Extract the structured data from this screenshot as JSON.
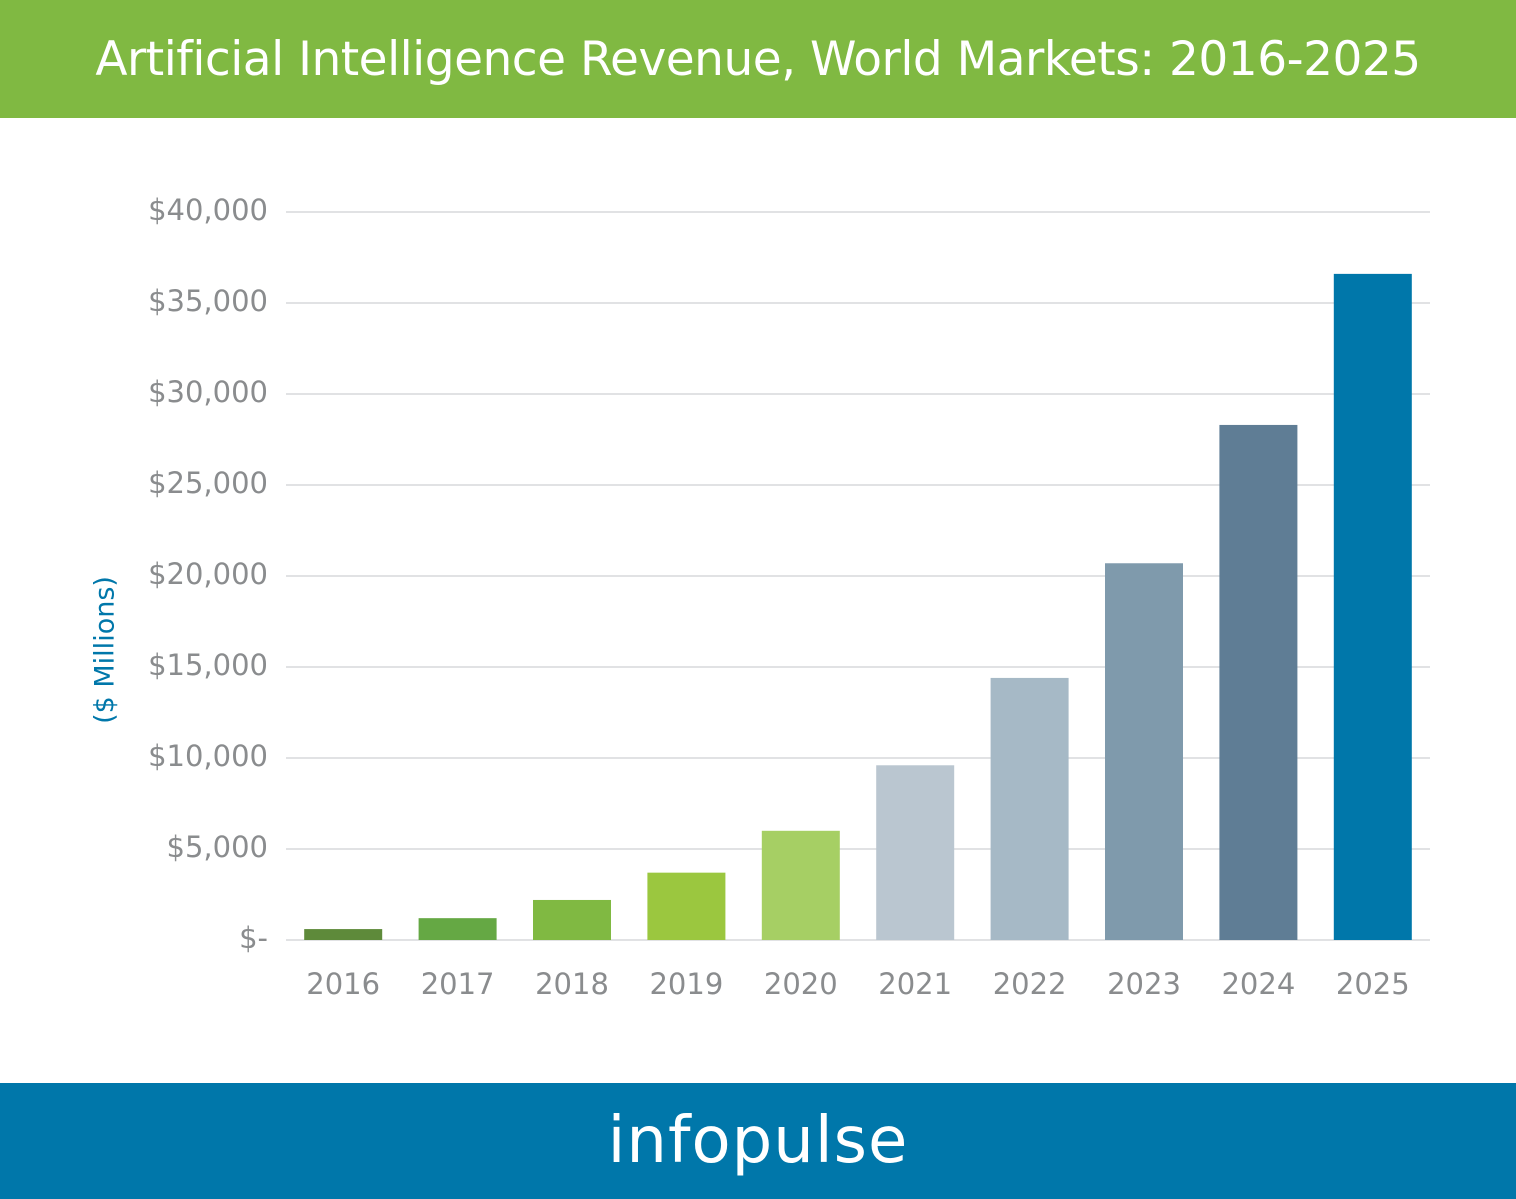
{
  "header": {
    "title": "Artificial Intelligence Revenue, World Markets: 2016-2025"
  },
  "footer": {
    "logo_text": "infopulse"
  },
  "colors": {
    "header_bg": "#80b942",
    "footer_bg": "#0077aa",
    "gridline": "#d7d9db",
    "tick_text": "#8a8c8e",
    "ylabel": "#0077aa"
  },
  "chart_data": {
    "type": "bar",
    "title": "Artificial Intelligence Revenue, World Markets: 2016-2025",
    "xlabel": "",
    "ylabel": "($ Millions)",
    "ylim": [
      0,
      40000
    ],
    "grid": true,
    "categories": [
      "2016",
      "2017",
      "2018",
      "2019",
      "2020",
      "2021",
      "2022",
      "2023",
      "2024",
      "2025"
    ],
    "values": [
      600,
      1200,
      2200,
      3700,
      6000,
      9600,
      14400,
      20700,
      28300,
      36600
    ],
    "bar_colors": [
      "#5e8a3a",
      "#65a844",
      "#80b942",
      "#9bc73f",
      "#a6cf64",
      "#bac6d0",
      "#a6b9c6",
      "#7f9aac",
      "#5f7d95",
      "#0077aa"
    ],
    "y_ticks": [
      {
        "value": 40000,
        "label": "$40,000"
      },
      {
        "value": 35000,
        "label": "$35,000"
      },
      {
        "value": 30000,
        "label": "$30,000"
      },
      {
        "value": 25000,
        "label": "$25,000"
      },
      {
        "value": 20000,
        "label": "$20,000"
      },
      {
        "value": 15000,
        "label": "$15,000"
      },
      {
        "value": 10000,
        "label": "$10,000"
      },
      {
        "value": 5000,
        "label": "$5,000"
      },
      {
        "value": 0,
        "label": "$-"
      }
    ]
  }
}
